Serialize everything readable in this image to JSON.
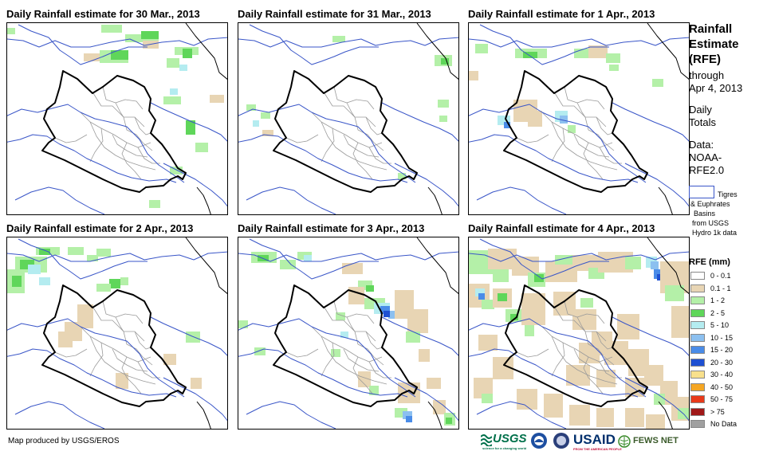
{
  "panels": [
    {
      "title": "Daily Rainfall estimate for 30 Mar., 2013"
    },
    {
      "title": "Daily Rainfall estimate for 31 Mar., 2013"
    },
    {
      "title": "Daily Rainfall estimate for 1 Apr., 2013"
    },
    {
      "title": "Daily Rainfall estimate for 2 Apr., 2013"
    },
    {
      "title": "Daily Rainfall estimate for 3 Apr., 2013"
    },
    {
      "title": "Daily Rainfall estimate for 4 Apr., 2013"
    }
  ],
  "side": {
    "title_l1": "Rainfall",
    "title_l2": "Estimate",
    "title_l3": "(RFE)",
    "through": "through",
    "date": "Apr 4, 2013",
    "daily": "Daily",
    "totals": "Totals",
    "data": "Data:",
    "noaa": "NOAA-",
    "rfe": "RFE2.0"
  },
  "basin_note": {
    "l1": "Tigres",
    "l2": "& Euphrates",
    "l3": "Basins",
    "l4": "from USGS",
    "l5": "Hydro 1k data"
  },
  "legend": {
    "title": "RFE (mm)",
    "items": [
      {
        "label": "0 - 0.1",
        "color": "#ffffff"
      },
      {
        "label": "0.1 - 1",
        "color": "#e8d5b4"
      },
      {
        "label": "1 - 2",
        "color": "#b4f0a8"
      },
      {
        "label": "2 - 5",
        "color": "#5fd65a"
      },
      {
        "label": "5 - 10",
        "color": "#b4ecf0"
      },
      {
        "label": "10 - 15",
        "color": "#8cc0f0"
      },
      {
        "label": "15 - 20",
        "color": "#4a8ce8"
      },
      {
        "label": "20 - 30",
        "color": "#1e50d2"
      },
      {
        "label": "30 - 40",
        "color": "#f8e08c"
      },
      {
        "label": "40 - 50",
        "color": "#f5a623"
      },
      {
        "label": "50 - 75",
        "color": "#e83a1a"
      },
      {
        "label": "> 75",
        "color": "#a01818"
      },
      {
        "label": "No Data",
        "color": "#a0a0a0"
      }
    ]
  },
  "credit": "Map produced by USGS/EROS",
  "logos": {
    "usgs": "USGS",
    "usgs_tag": "science for a changing world",
    "usaid": "USAID",
    "usaid_tag": "FROM THE AMERICAN PEOPLE",
    "fews": "FEWS NET"
  }
}
